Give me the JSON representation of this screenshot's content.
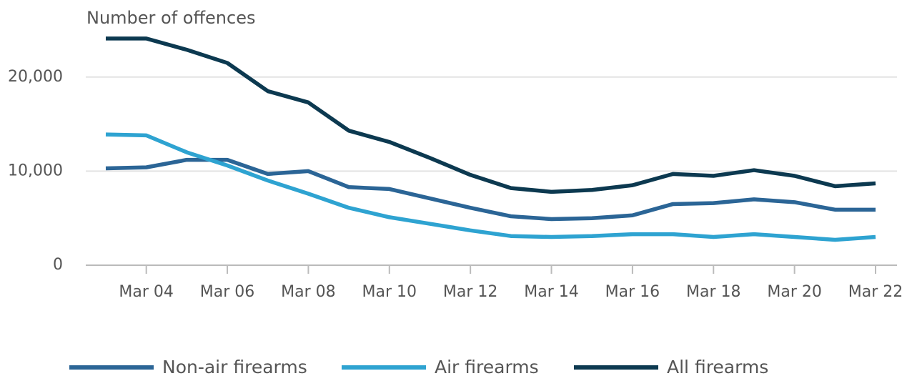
{
  "chart_data": {
    "type": "line",
    "y_axis_label": "Number of offences",
    "categories": [
      null,
      "Mar 04",
      null,
      "Mar 06",
      null,
      "Mar 08",
      null,
      "Mar 10",
      null,
      "Mar 12",
      null,
      "Mar 14",
      null,
      "Mar 16",
      null,
      "Mar 18",
      null,
      "Mar 20",
      null,
      "Mar 22"
    ],
    "series": [
      {
        "name": "Non-air firearms",
        "color": "#2b6596",
        "values": [
          10300,
          10400,
          11200,
          11200,
          9700,
          10000,
          8300,
          8100,
          7100,
          6100,
          5200,
          4900,
          5000,
          5300,
          6500,
          6600,
          7000,
          6700,
          5900,
          5900
        ]
      },
      {
        "name": "Air firearms",
        "color": "#2ea3d1",
        "values": [
          13900,
          13800,
          12000,
          10600,
          9000,
          7600,
          6100,
          5100,
          4400,
          3700,
          3100,
          3000,
          3100,
          3300,
          3300,
          3000,
          3300,
          3000,
          2700,
          3000
        ]
      },
      {
        "name": "All firearms",
        "color": "#0c3950",
        "values": [
          24100,
          24100,
          22900,
          21500,
          18500,
          17300,
          14300,
          13100,
          11400,
          9600,
          8200,
          7800,
          8000,
          8500,
          9700,
          9500,
          10100,
          9500,
          8400,
          8700
        ]
      }
    ],
    "ylim": [
      0,
      25000
    ],
    "yticks": [
      0,
      {
        "value": 10000,
        "label": "10,000"
      },
      {
        "value": 20000,
        "label": "20,000"
      }
    ],
    "grid": true,
    "legend": "bottom"
  }
}
